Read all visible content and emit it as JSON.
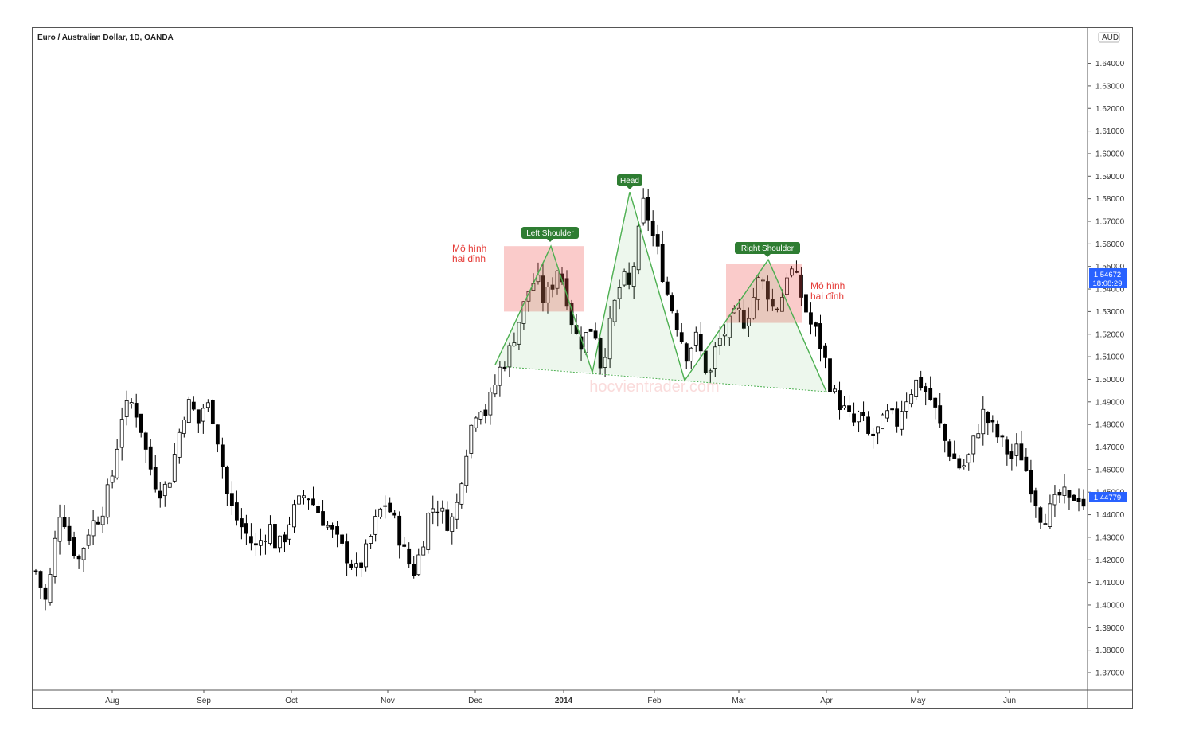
{
  "chart_data": {
    "type": "candlestick",
    "title": "Euro / Australian Dollar, 1D, OANDA",
    "currency": "AUD",
    "ylim": [
      1.36,
      1.66
    ],
    "y_ticks": [
      "1.64000",
      "1.63000",
      "1.62000",
      "1.61000",
      "1.60000",
      "1.59000",
      "1.58000",
      "1.57000",
      "1.56000",
      "1.55000",
      "1.54000",
      "1.53000",
      "1.52000",
      "1.51000",
      "1.50000",
      "1.49000",
      "1.48000",
      "1.47000",
      "1.46000",
      "1.45000",
      "1.44000",
      "1.43000",
      "1.42000",
      "1.41000",
      "1.40000",
      "1.39000",
      "1.38000",
      "1.37000"
    ],
    "x_labels": [
      "Aug",
      "Sep",
      "Oct",
      "Nov",
      "Dec",
      "2014",
      "Feb",
      "Mar",
      "Apr",
      "May",
      "Jun"
    ],
    "last_price": "1.54672",
    "countdown": "18:08:29",
    "second_price": "1.44779",
    "price_path": [
      [
        0,
        1.415
      ],
      [
        6,
        1.4
      ],
      [
        10,
        1.425
      ],
      [
        14,
        1.445
      ],
      [
        18,
        1.43
      ],
      [
        24,
        1.42
      ],
      [
        30,
        1.435
      ],
      [
        36,
        1.44
      ],
      [
        42,
        1.455
      ],
      [
        48,
        1.485
      ],
      [
        54,
        1.49
      ],
      [
        58,
        1.48
      ],
      [
        62,
        1.465
      ],
      [
        66,
        1.455
      ],
      [
        70,
        1.45
      ],
      [
        74,
        1.455
      ],
      [
        78,
        1.47
      ],
      [
        82,
        1.485
      ],
      [
        86,
        1.49
      ],
      [
        90,
        1.48
      ],
      [
        94,
        1.49
      ],
      [
        98,
        1.485
      ],
      [
        102,
        1.47
      ],
      [
        106,
        1.45
      ],
      [
        110,
        1.44
      ],
      [
        114,
        1.435
      ],
      [
        118,
        1.43
      ],
      [
        122,
        1.425
      ],
      [
        126,
        1.43
      ],
      [
        130,
        1.435
      ],
      [
        134,
        1.425
      ],
      [
        138,
        1.43
      ],
      [
        142,
        1.44
      ],
      [
        146,
        1.445
      ],
      [
        150,
        1.45
      ],
      [
        154,
        1.445
      ],
      [
        158,
        1.44
      ],
      [
        162,
        1.435
      ],
      [
        166,
        1.43
      ],
      [
        170,
        1.425
      ],
      [
        174,
        1.42
      ],
      [
        178,
        1.415
      ],
      [
        182,
        1.42
      ],
      [
        186,
        1.43
      ],
      [
        190,
        1.44
      ],
      [
        194,
        1.445
      ],
      [
        198,
        1.44
      ],
      [
        202,
        1.43
      ],
      [
        206,
        1.42
      ],
      [
        210,
        1.415
      ],
      [
        214,
        1.425
      ],
      [
        218,
        1.44
      ],
      [
        222,
        1.445
      ],
      [
        226,
        1.44
      ],
      [
        230,
        1.435
      ],
      [
        234,
        1.445
      ],
      [
        238,
        1.465
      ],
      [
        242,
        1.48
      ],
      [
        246,
        1.49
      ],
      [
        250,
        1.485
      ],
      [
        254,
        1.495
      ],
      [
        258,
        1.505
      ],
      [
        262,
        1.51
      ],
      [
        266,
        1.52
      ],
      [
        270,
        1.53
      ],
      [
        274,
        1.54
      ],
      [
        278,
        1.545
      ],
      [
        282,
        1.535
      ],
      [
        286,
        1.54
      ],
      [
        290,
        1.55
      ],
      [
        294,
        1.54
      ],
      [
        298,
        1.525
      ],
      [
        302,
        1.515
      ],
      [
        306,
        1.52
      ],
      [
        310,
        1.525
      ],
      [
        314,
        1.505
      ],
      [
        318,
        1.52
      ],
      [
        322,
        1.535
      ],
      [
        326,
        1.545
      ],
      [
        330,
        1.54
      ],
      [
        334,
        1.56
      ],
      [
        338,
        1.58
      ],
      [
        342,
        1.565
      ],
      [
        346,
        1.555
      ],
      [
        350,
        1.54
      ],
      [
        354,
        1.53
      ],
      [
        358,
        1.52
      ],
      [
        362,
        1.51
      ],
      [
        366,
        1.52
      ],
      [
        370,
        1.51
      ],
      [
        374,
        1.5
      ],
      [
        378,
        1.515
      ],
      [
        382,
        1.52
      ],
      [
        386,
        1.525
      ],
      [
        390,
        1.53
      ],
      [
        394,
        1.525
      ],
      [
        398,
        1.535
      ],
      [
        402,
        1.545
      ],
      [
        406,
        1.54
      ],
      [
        410,
        1.53
      ],
      [
        414,
        1.535
      ],
      [
        418,
        1.55
      ],
      [
        422,
        1.545
      ],
      [
        426,
        1.535
      ],
      [
        430,
        1.525
      ],
      [
        434,
        1.52
      ],
      [
        438,
        1.51
      ],
      [
        442,
        1.495
      ],
      [
        446,
        1.49
      ],
      [
        450,
        1.485
      ],
      [
        454,
        1.48
      ],
      [
        458,
        1.485
      ],
      [
        462,
        1.475
      ],
      [
        466,
        1.475
      ],
      [
        470,
        1.48
      ],
      [
        474,
        1.485
      ],
      [
        478,
        1.48
      ],
      [
        482,
        1.49
      ],
      [
        486,
        1.495
      ],
      [
        490,
        1.5
      ],
      [
        494,
        1.495
      ],
      [
        498,
        1.49
      ],
      [
        502,
        1.48
      ],
      [
        506,
        1.47
      ],
      [
        510,
        1.465
      ],
      [
        514,
        1.46
      ],
      [
        518,
        1.465
      ],
      [
        522,
        1.475
      ],
      [
        526,
        1.485
      ],
      [
        530,
        1.48
      ],
      [
        534,
        1.475
      ],
      [
        538,
        1.47
      ],
      [
        542,
        1.465
      ],
      [
        546,
        1.47
      ],
      [
        550,
        1.46
      ],
      [
        554,
        1.45
      ],
      [
        558,
        1.44
      ],
      [
        562,
        1.44
      ],
      [
        566,
        1.445
      ],
      [
        570,
        1.45
      ],
      [
        574,
        1.445
      ],
      [
        578,
        1.45
      ],
      [
        582,
        1.445
      ]
    ],
    "candle_count": 220,
    "annotations": {
      "left_shoulder": "Left Shoulder",
      "head": "Head",
      "right_shoulder": "Right Shoulder",
      "double_top_left_line1": "Mô hình",
      "double_top_left_line2": "hai đỉnh",
      "double_top_right_line1": "Mô hình",
      "double_top_right_line2": "hai đỉnh",
      "watermark": "hocvientrader.com"
    },
    "pattern_points": [
      [
        1.507,
        "start"
      ],
      [
        1.559,
        "ls"
      ],
      [
        1.503,
        "n1"
      ],
      [
        1.583,
        "head"
      ],
      [
        1.499,
        "n2"
      ],
      [
        1.553,
        "rs"
      ],
      [
        1.494,
        "end"
      ]
    ]
  },
  "colors": {
    "up": "#ffffff",
    "down": "#000000",
    "pattern_line": "#4caf50",
    "pattern_fill": "rgba(76,175,80,0.10)",
    "box_fill": "rgba(239,83,80,0.30)",
    "label_bg": "#2e7d32",
    "label_text": "#ffffff",
    "red_text": "#e53935",
    "price_tag": "#2962ff"
  }
}
